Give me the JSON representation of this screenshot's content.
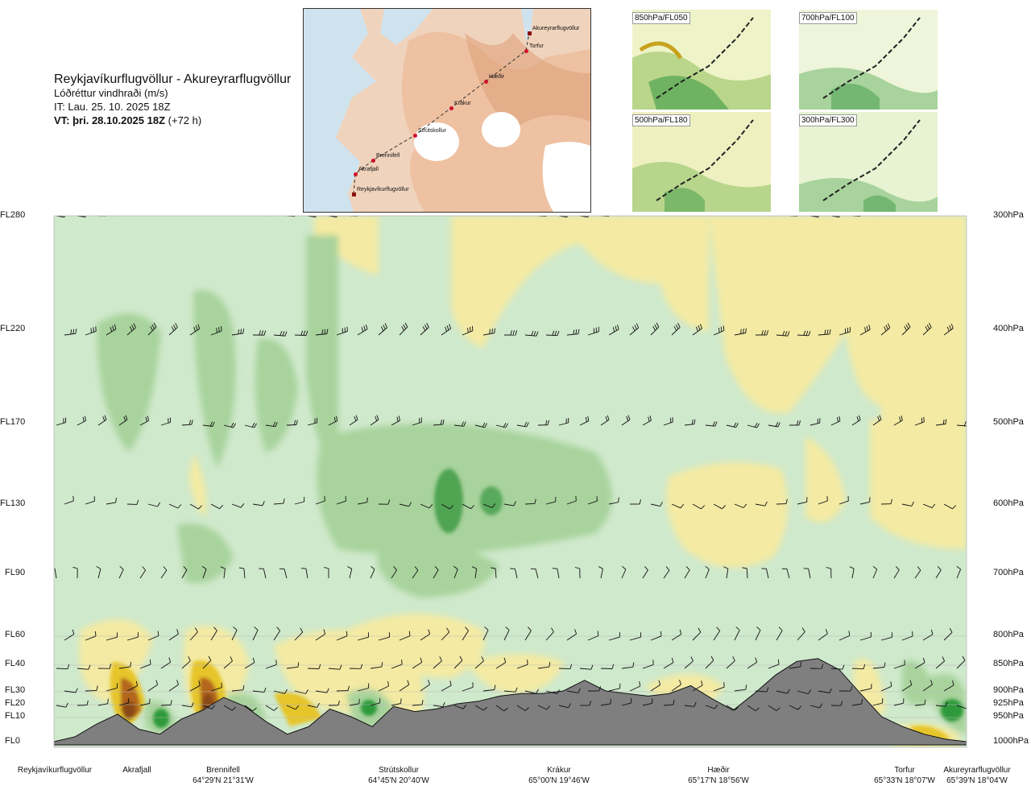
{
  "header": {
    "route": "Reykjavíkurflugvöllur - Akureyrarflugvöllur",
    "variable": "Lóðréttur vindhraði (m/s)",
    "issue_time": "IT: Lau. 25. 10. 2025 18Z",
    "valid_prefix": "VT: þri. 28.10.2025 18Z",
    "valid_suffix": "(+72 h)"
  },
  "route_map": {
    "points": [
      {
        "name": "Akureyrarflugvöllur"
      },
      {
        "name": "Torfur"
      },
      {
        "name": "Hæðir"
      },
      {
        "name": "Krákur"
      },
      {
        "name": "Strútskollur"
      },
      {
        "name": "Brennifell"
      },
      {
        "name": "Akrafjall"
      },
      {
        "name": "Reykjavíkurflugvöllur"
      }
    ]
  },
  "mini_maps": [
    {
      "label": "850hPa/FL050"
    },
    {
      "label": "700hPa/FL100"
    },
    {
      "label": "500hPa/FL180"
    },
    {
      "label": "300hPa/FL300"
    }
  ],
  "chart_data": {
    "type": "heatmap",
    "title": "Reykjavíkurflugvöllur - Akureyrarflugvöllur",
    "colors": {
      "terrain": "#7f7f7f",
      "strong_down": "#2e9a3a",
      "down": "#9fcf9a",
      "weak_down": "#cfe9cc",
      "neutral": "#f7f8e6",
      "weak_up": "#f4eaa3",
      "up": "#e6c52a",
      "strong_up": "#8a4a12"
    },
    "left_axis": {
      "labels": [
        "FL280",
        "FL220",
        "FL170",
        "FL130",
        "FL90",
        "FL60",
        "FL40",
        "FL30",
        "FL20",
        "FL10",
        "FL0"
      ],
      "values": [
        280,
        220,
        170,
        130,
        90,
        60,
        40,
        30,
        20,
        10,
        0
      ]
    },
    "right_axis": {
      "labels": [
        "300hPa",
        "400hPa",
        "500hPa",
        "600hPa",
        "700hPa",
        "800hPa",
        "850hPa",
        "900hPa",
        "925hPa",
        "950hPa",
        "1000hPa"
      ]
    },
    "x_points": [
      {
        "name": "Reykjavíkurflugvöllur",
        "coord": ""
      },
      {
        "name": "Akrafjall",
        "coord": ""
      },
      {
        "name": "Brennifell",
        "coord": "64°29'N 21°31'W"
      },
      {
        "name": "Strútskollur",
        "coord": "64°45'N 20°40'W"
      },
      {
        "name": "Krákur",
        "coord": "65°00'N 19°46'W"
      },
      {
        "name": "Hæðir",
        "coord": "65°17'N 18°56'W"
      },
      {
        "name": "Torfur",
        "coord": "65°33'N 18°07'W"
      },
      {
        "name": "Akureyrarflugvöllur",
        "coord": "65°39'N 18°04'W"
      }
    ],
    "terrain_profile_ft": [
      0,
      200,
      700,
      1200,
      500,
      300,
      900,
      1500,
      2500,
      1800,
      800,
      300,
      600,
      1600,
      1000,
      600,
      1800,
      1400,
      1600,
      2000,
      2200,
      2600,
      2800,
      2800,
      3000,
      3400,
      3000,
      2800,
      2600,
      2800,
      3200,
      2400,
      1500,
      2800,
      3600,
      4200,
      4400,
      3800,
      2800,
      1000,
      600,
      300,
      100,
      0
    ]
  }
}
